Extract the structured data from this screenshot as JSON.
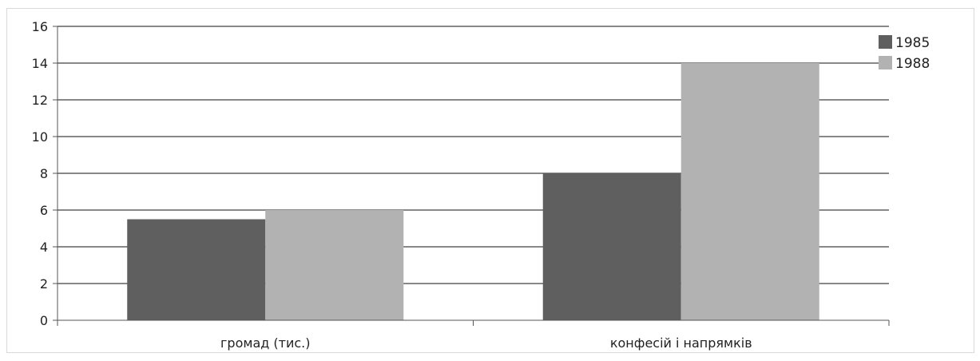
{
  "chart_data": {
    "type": "bar",
    "categories": [
      "громад (тис.)",
      "конфесій і напрямків"
    ],
    "series": [
      {
        "name": "1985",
        "values": [
          5.5,
          8
        ],
        "color": "#5f5f5f"
      },
      {
        "name": "1988",
        "values": [
          6,
          14
        ],
        "color": "#b2b2b2"
      }
    ],
    "ylim": [
      0,
      16
    ],
    "yticks": [
      0,
      2,
      4,
      6,
      8,
      10,
      12,
      14,
      16
    ],
    "grid": true,
    "legend_position": "top-right"
  }
}
